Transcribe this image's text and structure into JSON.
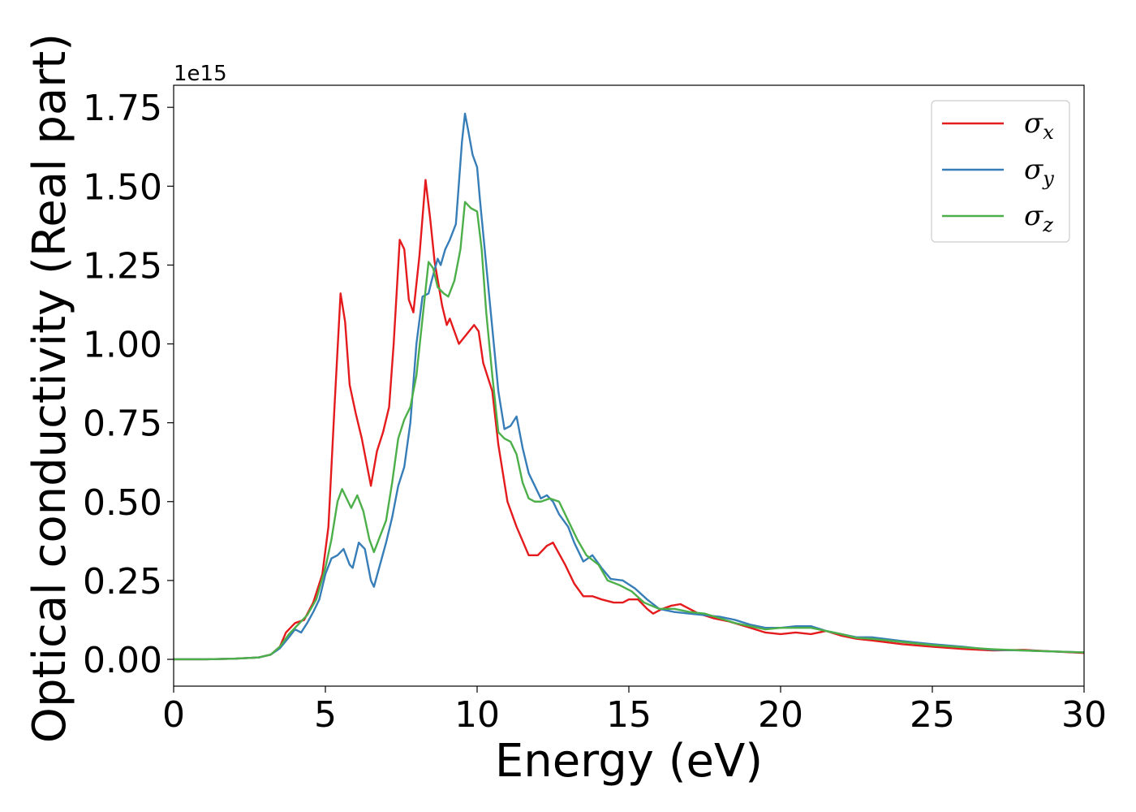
{
  "chart_data": {
    "type": "line",
    "title": "",
    "xlabel": "Energy (eV)",
    "ylabel": "Optical conductivity (Real part)",
    "y_offset_text": "1e15",
    "xlim": [
      0,
      30
    ],
    "ylim": [
      -0.085,
      1.82
    ],
    "x_ticks": [
      0,
      5,
      10,
      15,
      20,
      25,
      30
    ],
    "x_tick_labels": [
      "0",
      "5",
      "10",
      "15",
      "20",
      "25",
      "30"
    ],
    "y_ticks": [
      0.0,
      0.25,
      0.5,
      0.75,
      1.0,
      1.25,
      1.5,
      1.75
    ],
    "y_tick_labels": [
      "0.00",
      "0.25",
      "0.50",
      "0.75",
      "1.00",
      "1.25",
      "1.50",
      "1.75"
    ],
    "grid": false,
    "legend_position": "top-right",
    "colors": {
      "sigma_x": "#e41a1c",
      "sigma_y": "#377eb8",
      "sigma_z": "#4daf4a"
    },
    "series": [
      {
        "name": "σx",
        "symbol": "σ",
        "subscript": "x",
        "color": "#e41a1c",
        "points": [
          [
            0,
            0.0
          ],
          [
            1,
            0.0
          ],
          [
            2,
            0.002
          ],
          [
            2.8,
            0.006
          ],
          [
            3.2,
            0.015
          ],
          [
            3.5,
            0.04
          ],
          [
            3.7,
            0.085
          ],
          [
            4.0,
            0.115
          ],
          [
            4.3,
            0.125
          ],
          [
            4.6,
            0.18
          ],
          [
            4.9,
            0.27
          ],
          [
            5.1,
            0.42
          ],
          [
            5.3,
            0.8
          ],
          [
            5.5,
            1.16
          ],
          [
            5.65,
            1.07
          ],
          [
            5.8,
            0.87
          ],
          [
            6.0,
            0.78
          ],
          [
            6.2,
            0.7
          ],
          [
            6.5,
            0.55
          ],
          [
            6.7,
            0.66
          ],
          [
            6.9,
            0.72
          ],
          [
            7.1,
            0.8
          ],
          [
            7.25,
            1.0
          ],
          [
            7.45,
            1.33
          ],
          [
            7.6,
            1.3
          ],
          [
            7.75,
            1.14
          ],
          [
            7.9,
            1.1
          ],
          [
            8.1,
            1.28
          ],
          [
            8.3,
            1.52
          ],
          [
            8.45,
            1.4
          ],
          [
            8.6,
            1.26
          ],
          [
            8.85,
            1.12
          ],
          [
            9.0,
            1.06
          ],
          [
            9.1,
            1.08
          ],
          [
            9.4,
            1.0
          ],
          [
            9.65,
            1.03
          ],
          [
            9.9,
            1.06
          ],
          [
            10.05,
            1.04
          ],
          [
            10.2,
            0.94
          ],
          [
            10.5,
            0.85
          ],
          [
            10.7,
            0.68
          ],
          [
            11.0,
            0.5
          ],
          [
            11.3,
            0.42
          ],
          [
            11.7,
            0.33
          ],
          [
            12.0,
            0.33
          ],
          [
            12.3,
            0.36
          ],
          [
            12.5,
            0.37
          ],
          [
            12.9,
            0.3
          ],
          [
            13.2,
            0.24
          ],
          [
            13.5,
            0.2
          ],
          [
            13.8,
            0.2
          ],
          [
            14.1,
            0.19
          ],
          [
            14.5,
            0.18
          ],
          [
            14.8,
            0.18
          ],
          [
            15.0,
            0.19
          ],
          [
            15.3,
            0.19
          ],
          [
            15.6,
            0.16
          ],
          [
            15.8,
            0.145
          ],
          [
            16.1,
            0.16
          ],
          [
            16.4,
            0.17
          ],
          [
            16.7,
            0.175
          ],
          [
            16.9,
            0.165
          ],
          [
            17.3,
            0.145
          ],
          [
            17.8,
            0.13
          ],
          [
            18.3,
            0.12
          ],
          [
            19,
            0.1
          ],
          [
            19.5,
            0.085
          ],
          [
            20,
            0.08
          ],
          [
            20.5,
            0.085
          ],
          [
            21,
            0.08
          ],
          [
            21.5,
            0.09
          ],
          [
            22,
            0.075
          ],
          [
            22.5,
            0.065
          ],
          [
            23,
            0.06
          ],
          [
            24,
            0.048
          ],
          [
            25,
            0.04
          ],
          [
            26,
            0.033
          ],
          [
            27,
            0.028
          ],
          [
            28,
            0.03
          ],
          [
            29,
            0.025
          ],
          [
            30,
            0.02
          ]
        ]
      },
      {
        "name": "σy",
        "symbol": "σ",
        "subscript": "y",
        "color": "#377eb8",
        "points": [
          [
            0,
            0.0
          ],
          [
            1,
            0.0
          ],
          [
            2,
            0.002
          ],
          [
            2.8,
            0.006
          ],
          [
            3.2,
            0.015
          ],
          [
            3.5,
            0.035
          ],
          [
            3.8,
            0.07
          ],
          [
            4.0,
            0.095
          ],
          [
            4.2,
            0.085
          ],
          [
            4.4,
            0.115
          ],
          [
            4.6,
            0.15
          ],
          [
            4.8,
            0.19
          ],
          [
            5.0,
            0.27
          ],
          [
            5.2,
            0.32
          ],
          [
            5.4,
            0.33
          ],
          [
            5.6,
            0.35
          ],
          [
            5.8,
            0.3
          ],
          [
            5.9,
            0.29
          ],
          [
            6.1,
            0.37
          ],
          [
            6.3,
            0.35
          ],
          [
            6.5,
            0.25
          ],
          [
            6.6,
            0.23
          ],
          [
            6.8,
            0.3
          ],
          [
            7.0,
            0.37
          ],
          [
            7.2,
            0.45
          ],
          [
            7.4,
            0.55
          ],
          [
            7.6,
            0.61
          ],
          [
            7.8,
            0.75
          ],
          [
            8.0,
            1.0
          ],
          [
            8.2,
            1.15
          ],
          [
            8.4,
            1.16
          ],
          [
            8.5,
            1.2
          ],
          [
            8.7,
            1.27
          ],
          [
            8.8,
            1.25
          ],
          [
            8.95,
            1.3
          ],
          [
            9.1,
            1.33
          ],
          [
            9.3,
            1.38
          ],
          [
            9.5,
            1.64
          ],
          [
            9.6,
            1.73
          ],
          [
            9.7,
            1.68
          ],
          [
            9.85,
            1.6
          ],
          [
            10.0,
            1.56
          ],
          [
            10.1,
            1.45
          ],
          [
            10.3,
            1.25
          ],
          [
            10.5,
            1.05
          ],
          [
            10.7,
            0.85
          ],
          [
            10.9,
            0.73
          ],
          [
            11.1,
            0.74
          ],
          [
            11.3,
            0.77
          ],
          [
            11.5,
            0.67
          ],
          [
            11.7,
            0.59
          ],
          [
            11.9,
            0.55
          ],
          [
            12.1,
            0.51
          ],
          [
            12.3,
            0.52
          ],
          [
            12.5,
            0.5
          ],
          [
            12.7,
            0.46
          ],
          [
            13.0,
            0.42
          ],
          [
            13.2,
            0.37
          ],
          [
            13.5,
            0.31
          ],
          [
            13.8,
            0.33
          ],
          [
            14.1,
            0.29
          ],
          [
            14.4,
            0.255
          ],
          [
            14.8,
            0.25
          ],
          [
            15.2,
            0.225
          ],
          [
            15.6,
            0.19
          ],
          [
            16,
            0.16
          ],
          [
            16.5,
            0.15
          ],
          [
            17,
            0.145
          ],
          [
            17.5,
            0.14
          ],
          [
            18,
            0.135
          ],
          [
            18.5,
            0.125
          ],
          [
            19,
            0.11
          ],
          [
            19.5,
            0.1
          ],
          [
            20,
            0.1
          ],
          [
            20.5,
            0.105
          ],
          [
            21,
            0.105
          ],
          [
            21.5,
            0.09
          ],
          [
            22,
            0.08
          ],
          [
            22.5,
            0.07
          ],
          [
            23,
            0.07
          ],
          [
            24,
            0.058
          ],
          [
            25,
            0.048
          ],
          [
            26,
            0.04
          ],
          [
            27,
            0.03
          ],
          [
            28,
            0.028
          ],
          [
            29,
            0.025
          ],
          [
            30,
            0.022
          ]
        ]
      },
      {
        "name": "σz",
        "symbol": "σ",
        "subscript": "z",
        "color": "#4daf4a",
        "points": [
          [
            0,
            0.0
          ],
          [
            1,
            0.0
          ],
          [
            2,
            0.002
          ],
          [
            2.8,
            0.006
          ],
          [
            3.2,
            0.015
          ],
          [
            3.5,
            0.04
          ],
          [
            3.8,
            0.08
          ],
          [
            4.1,
            0.11
          ],
          [
            4.4,
            0.14
          ],
          [
            4.7,
            0.19
          ],
          [
            5.0,
            0.29
          ],
          [
            5.2,
            0.38
          ],
          [
            5.4,
            0.5
          ],
          [
            5.55,
            0.54
          ],
          [
            5.7,
            0.51
          ],
          [
            5.85,
            0.48
          ],
          [
            6.05,
            0.52
          ],
          [
            6.25,
            0.47
          ],
          [
            6.45,
            0.38
          ],
          [
            6.6,
            0.34
          ],
          [
            6.8,
            0.39
          ],
          [
            7.0,
            0.44
          ],
          [
            7.2,
            0.56
          ],
          [
            7.4,
            0.7
          ],
          [
            7.6,
            0.76
          ],
          [
            7.8,
            0.8
          ],
          [
            8.0,
            0.9
          ],
          [
            8.2,
            1.08
          ],
          [
            8.4,
            1.26
          ],
          [
            8.55,
            1.24
          ],
          [
            8.7,
            1.18
          ],
          [
            8.9,
            1.16
          ],
          [
            9.05,
            1.15
          ],
          [
            9.25,
            1.2
          ],
          [
            9.45,
            1.3
          ],
          [
            9.6,
            1.45
          ],
          [
            9.8,
            1.43
          ],
          [
            10.0,
            1.42
          ],
          [
            10.15,
            1.3
          ],
          [
            10.3,
            1.1
          ],
          [
            10.5,
            0.9
          ],
          [
            10.7,
            0.72
          ],
          [
            10.9,
            0.7
          ],
          [
            11.1,
            0.69
          ],
          [
            11.3,
            0.65
          ],
          [
            11.5,
            0.56
          ],
          [
            11.7,
            0.51
          ],
          [
            11.9,
            0.5
          ],
          [
            12.1,
            0.5
          ],
          [
            12.4,
            0.51
          ],
          [
            12.7,
            0.5
          ],
          [
            13.0,
            0.44
          ],
          [
            13.3,
            0.38
          ],
          [
            13.6,
            0.33
          ],
          [
            14.0,
            0.3
          ],
          [
            14.3,
            0.25
          ],
          [
            14.7,
            0.235
          ],
          [
            15.1,
            0.215
          ],
          [
            15.5,
            0.18
          ],
          [
            16,
            0.16
          ],
          [
            16.5,
            0.16
          ],
          [
            17,
            0.15
          ],
          [
            17.5,
            0.145
          ],
          [
            18,
            0.13
          ],
          [
            18.5,
            0.115
          ],
          [
            19,
            0.105
          ],
          [
            19.5,
            0.095
          ],
          [
            20,
            0.1
          ],
          [
            20.5,
            0.1
          ],
          [
            21,
            0.1
          ],
          [
            21.5,
            0.09
          ],
          [
            22,
            0.08
          ],
          [
            22.5,
            0.068
          ],
          [
            23,
            0.065
          ],
          [
            24,
            0.055
          ],
          [
            25,
            0.045
          ],
          [
            26,
            0.038
          ],
          [
            27,
            0.032
          ],
          [
            28,
            0.028
          ],
          [
            29,
            0.025
          ],
          [
            30,
            0.022
          ]
        ]
      }
    ]
  }
}
